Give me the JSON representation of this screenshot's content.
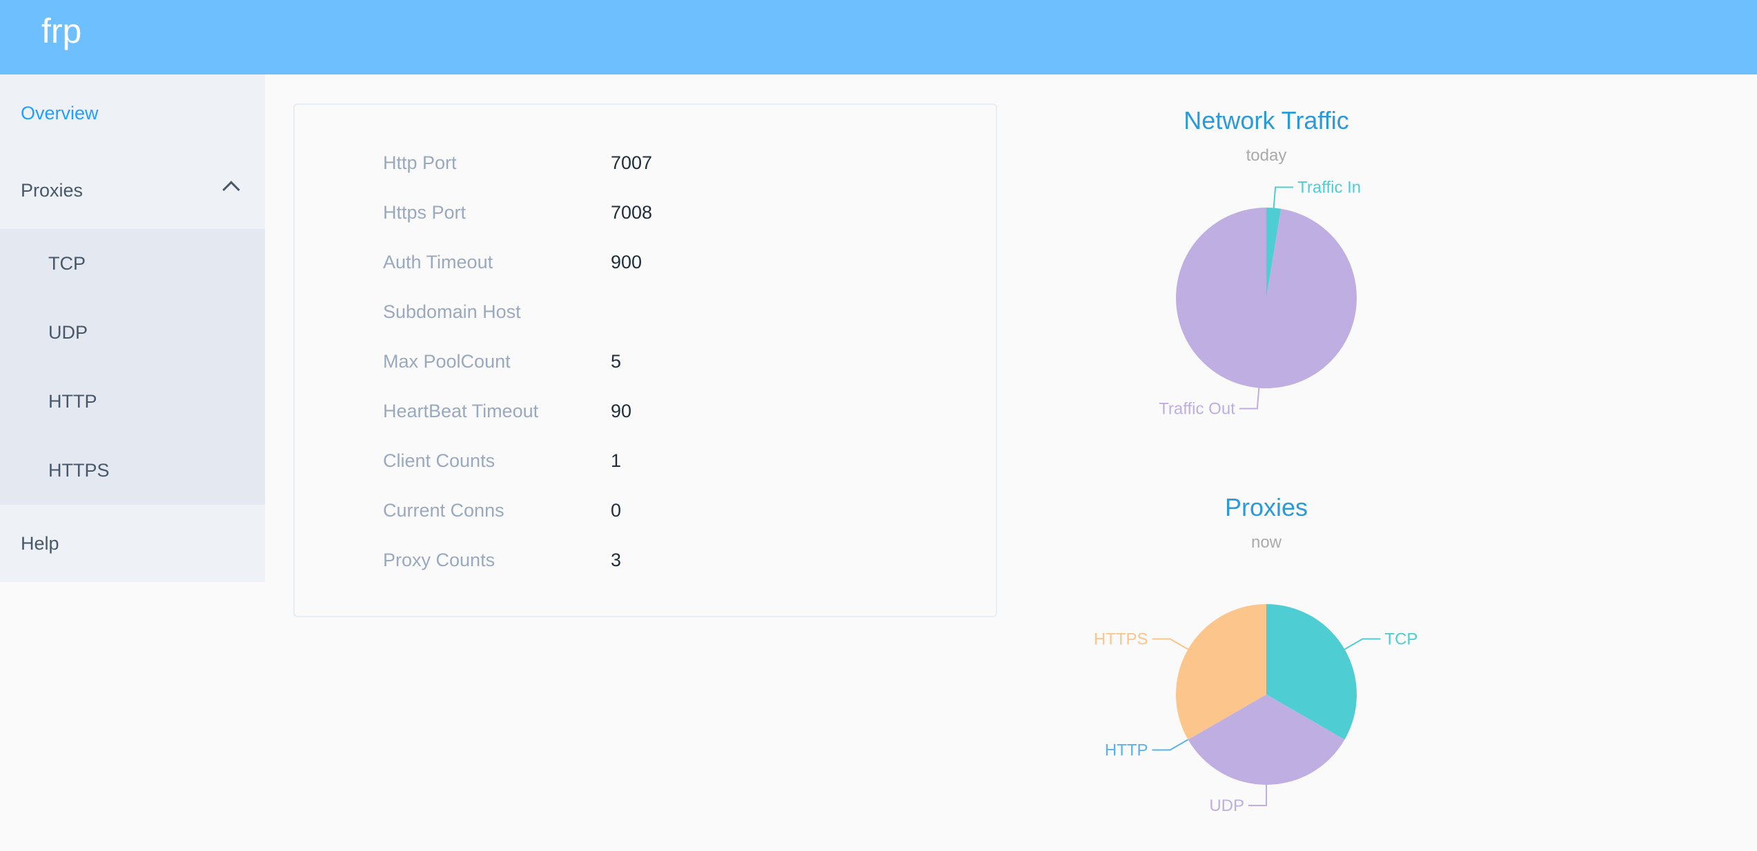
{
  "header": {
    "brand": "frp"
  },
  "sidebar": {
    "overview": "Overview",
    "proxies": "Proxies",
    "sub_items": [
      "TCP",
      "UDP",
      "HTTP",
      "HTTPS"
    ],
    "help": "Help"
  },
  "info": [
    {
      "label": "Http Port",
      "value": "7007"
    },
    {
      "label": "Https Port",
      "value": "7008"
    },
    {
      "label": "Auth Timeout",
      "value": "900"
    },
    {
      "label": "Subdomain Host",
      "value": ""
    },
    {
      "label": "Max PoolCount",
      "value": "5"
    },
    {
      "label": "HeartBeat Timeout",
      "value": "90"
    },
    {
      "label": "Client Counts",
      "value": "1"
    },
    {
      "label": "Current Conns",
      "value": "0"
    },
    {
      "label": "Proxy Counts",
      "value": "3"
    }
  ],
  "colors": {
    "header": "#6ebffe",
    "active": "#20a0ff",
    "title": "#2a9ad9"
  },
  "chart_data": [
    {
      "type": "pie",
      "title": "Network Traffic",
      "subtitle": "today",
      "categories": [
        "Traffic In",
        "Traffic Out"
      ],
      "values": [
        2.6,
        97.4
      ],
      "colors": [
        "#4ecdd2",
        "#bfaee2"
      ]
    },
    {
      "type": "pie",
      "title": "Proxies",
      "subtitle": "now",
      "categories": [
        "TCP",
        "UDP",
        "HTTP",
        "HTTPS"
      ],
      "values": [
        1,
        1,
        0,
        1
      ],
      "colors": [
        "#4ecdd2",
        "#bfaee2",
        "#5ab1ef",
        "#fcc58b"
      ]
    }
  ]
}
